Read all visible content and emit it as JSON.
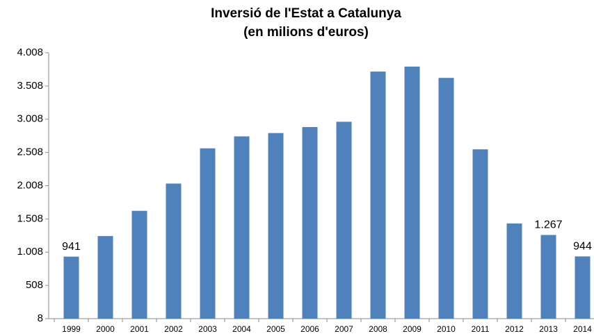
{
  "chart_data": {
    "type": "bar",
    "title": "Inversió de l'Estat a Catalunya",
    "subtitle": "(en milions d'euros)",
    "categories": [
      "1999",
      "2000",
      "2001",
      "2002",
      "2003",
      "2004",
      "2005",
      "2006",
      "2007",
      "2008",
      "2009",
      "2010",
      "2011",
      "2012",
      "2013",
      "2014"
    ],
    "values": [
      941,
      1250,
      1630,
      2040,
      2570,
      2750,
      2800,
      2890,
      2970,
      3725,
      3800,
      3630,
      2555,
      1440,
      1267,
      944
    ],
    "value_labels": [
      "941",
      null,
      null,
      null,
      null,
      null,
      null,
      null,
      null,
      null,
      null,
      null,
      null,
      null,
      "1.267",
      "944"
    ],
    "color": "#4f81bd",
    "ylim": [
      8,
      4008
    ],
    "yticks": [
      8,
      508,
      {
        "value": 1008,
        "label": "1.008"
      },
      {
        "value": 1508,
        "label": "1.508"
      },
      {
        "value": 2008,
        "label": "2.008"
      },
      {
        "value": 2508,
        "label": "2.508"
      },
      {
        "value": 3008,
        "label": "3.008"
      },
      {
        "value": 3508,
        "label": "3.508"
      },
      {
        "value": 4008,
        "label": "4.008"
      }
    ],
    "grid": false
  }
}
